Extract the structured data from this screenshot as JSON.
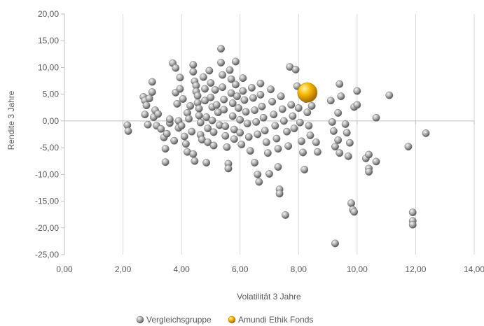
{
  "chart_data": {
    "type": "scatter",
    "xlabel": "Volatilität 3 Jahre",
    "ylabel": "Rendite 3 Jahre",
    "xlim": [
      0,
      14
    ],
    "ylim": [
      -25,
      20
    ],
    "xticks": [
      0,
      2,
      4,
      6,
      8,
      10,
      12,
      14
    ],
    "yticks": [
      -25,
      -20,
      -15,
      -10,
      -5,
      0,
      5,
      10,
      15,
      20
    ],
    "xtick_labels": [
      "0,00",
      "2,00",
      "4,00",
      "6,00",
      "8,00",
      "10,00",
      "12,00",
      "14,00"
    ],
    "ytick_labels": [
      "-25,00",
      "-20,00",
      "-15,00",
      "-10,00",
      "-5,00",
      "0,00",
      "5,00",
      "10,00",
      "15,00",
      "20,00"
    ],
    "grid": "vertical",
    "legend_position": "bottom",
    "colors": {
      "series_1": "#a6a6a6",
      "series_2": "#f5b800",
      "grid": "#d9d9d9",
      "text": "#595959"
    },
    "series": [
      {
        "name": "Vergleichsgruppe",
        "points": [
          [
            2.15,
            -0.8
          ],
          [
            2.18,
            -1.9
          ],
          [
            2.7,
            4.5
          ],
          [
            2.75,
            3.8
          ],
          [
            2.8,
            2.9
          ],
          [
            2.75,
            1.2
          ],
          [
            2.85,
            -0.7
          ],
          [
            2.9,
            4.2
          ],
          [
            3.0,
            7.3
          ],
          [
            3.0,
            5.4
          ],
          [
            3.1,
            2.0
          ],
          [
            3.05,
            0.7
          ],
          [
            3.15,
            -0.9
          ],
          [
            3.2,
            1.3
          ],
          [
            3.3,
            -1.5
          ],
          [
            3.4,
            -3.1
          ],
          [
            3.45,
            -5.2
          ],
          [
            3.45,
            -7.7
          ],
          [
            3.5,
            -2.4
          ],
          [
            3.6,
            -0.4
          ],
          [
            3.6,
            0.3
          ],
          [
            3.7,
            10.8
          ],
          [
            3.75,
            -3.7
          ],
          [
            3.8,
            9.9
          ],
          [
            3.8,
            5.3
          ],
          [
            3.85,
            3.2
          ],
          [
            3.9,
            0.0
          ],
          [
            3.9,
            -1.3
          ],
          [
            3.95,
            8.1
          ],
          [
            3.95,
            6.0
          ],
          [
            4.0,
            -0.9
          ],
          [
            4.05,
            4.1
          ],
          [
            4.1,
            -2.9
          ],
          [
            4.15,
            -4.3
          ],
          [
            4.2,
            -5.8
          ],
          [
            4.2,
            1.5
          ],
          [
            4.25,
            0.4
          ],
          [
            4.3,
            2.8
          ],
          [
            4.35,
            -2.0
          ],
          [
            4.4,
            10.5
          ],
          [
            4.4,
            9.2
          ],
          [
            4.4,
            -6.2
          ],
          [
            4.45,
            -7.5
          ],
          [
            4.45,
            7.4
          ],
          [
            4.5,
            6.6
          ],
          [
            4.5,
            5.5
          ],
          [
            4.55,
            4.7
          ],
          [
            4.55,
            3.4
          ],
          [
            4.6,
            2.3
          ],
          [
            4.6,
            1.0
          ],
          [
            4.65,
            -0.3
          ],
          [
            4.65,
            -2.6
          ],
          [
            4.7,
            -3.5
          ],
          [
            4.75,
            8.2
          ],
          [
            4.8,
            6.0
          ],
          [
            4.8,
            3.8
          ],
          [
            4.85,
            -7.8
          ],
          [
            4.85,
            0.7
          ],
          [
            4.9,
            -1.4
          ],
          [
            4.9,
            -4.0
          ],
          [
            4.95,
            9.4
          ],
          [
            5.0,
            7.1
          ],
          [
            5.0,
            4.4
          ],
          [
            5.05,
            2.6
          ],
          [
            5.05,
            0.1
          ],
          [
            5.1,
            -2.1
          ],
          [
            5.1,
            -4.6
          ],
          [
            5.15,
            5.8
          ],
          [
            5.2,
            3.0
          ],
          [
            5.25,
            1.6
          ],
          [
            5.3,
            -0.8
          ],
          [
            5.35,
            13.5
          ],
          [
            5.35,
            10.9
          ],
          [
            5.4,
            8.6
          ],
          [
            5.4,
            6.3
          ],
          [
            5.45,
            4.0
          ],
          [
            5.45,
            2.1
          ],
          [
            5.5,
            -1.0
          ],
          [
            5.5,
            -2.8
          ],
          [
            5.55,
            -4.9
          ],
          [
            5.6,
            -8.0
          ],
          [
            5.6,
            -8.9
          ],
          [
            5.65,
            9.5
          ],
          [
            5.7,
            7.8
          ],
          [
            5.7,
            5.2
          ],
          [
            5.75,
            3.3
          ],
          [
            5.75,
            0.9
          ],
          [
            5.8,
            -1.6
          ],
          [
            5.8,
            -3.4
          ],
          [
            5.85,
            11.1
          ],
          [
            5.85,
            6.8
          ],
          [
            5.9,
            4.6
          ],
          [
            5.95,
            2.4
          ],
          [
            6.0,
            0.2
          ],
          [
            6.0,
            -2.2
          ],
          [
            6.05,
            -4.4
          ],
          [
            6.1,
            8.0
          ],
          [
            6.1,
            5.6
          ],
          [
            6.15,
            3.9
          ],
          [
            6.2,
            1.7
          ],
          [
            6.25,
            -0.5
          ],
          [
            6.3,
            -3.0
          ],
          [
            6.35,
            -5.6
          ],
          [
            6.4,
            6.2
          ],
          [
            6.45,
            4.3
          ],
          [
            6.5,
            2.0
          ],
          [
            6.5,
            -7.8
          ],
          [
            6.55,
            -0.2
          ],
          [
            6.6,
            -2.5
          ],
          [
            6.6,
            -10.0
          ],
          [
            6.65,
            -11.4
          ],
          [
            6.7,
            7.0
          ],
          [
            6.7,
            4.9
          ],
          [
            6.75,
            2.7
          ],
          [
            6.8,
            0.6
          ],
          [
            6.85,
            -1.8
          ],
          [
            6.9,
            -4.0
          ],
          [
            6.95,
            -6.0
          ],
          [
            7.0,
            -9.9
          ],
          [
            7.05,
            5.9
          ],
          [
            7.1,
            3.6
          ],
          [
            7.15,
            1.2
          ],
          [
            7.2,
            -0.9
          ],
          [
            7.25,
            -3.3
          ],
          [
            7.3,
            -5.2
          ],
          [
            7.3,
            -8.6
          ],
          [
            7.35,
            -12.8
          ],
          [
            7.35,
            -13.6
          ],
          [
            7.4,
            4.6
          ],
          [
            7.45,
            2.2
          ],
          [
            7.5,
            0.0
          ],
          [
            7.55,
            -17.6
          ],
          [
            7.6,
            -2.0
          ],
          [
            7.65,
            -4.7
          ],
          [
            7.7,
            10.1
          ],
          [
            7.75,
            3.0
          ],
          [
            7.8,
            0.9
          ],
          [
            7.85,
            -1.4
          ],
          [
            7.9,
            9.6
          ],
          [
            7.95,
            6.5
          ],
          [
            8.0,
            2.4
          ],
          [
            8.05,
            -0.3
          ],
          [
            8.1,
            -3.8
          ],
          [
            8.15,
            -5.9
          ],
          [
            8.2,
            -9.1
          ],
          [
            8.25,
            4.1
          ],
          [
            8.3,
            1.6
          ],
          [
            8.35,
            -0.9
          ],
          [
            8.4,
            -2.7
          ],
          [
            8.45,
            2.8
          ],
          [
            8.6,
            -4.0
          ],
          [
            8.65,
            -5.8
          ],
          [
            9.1,
            3.8
          ],
          [
            9.15,
            -0.2
          ],
          [
            9.2,
            -1.9
          ],
          [
            9.25,
            -4.8
          ],
          [
            9.25,
            -22.9
          ],
          [
            9.35,
            1.5
          ],
          [
            9.35,
            -3.6
          ],
          [
            9.4,
            -6.0
          ],
          [
            9.4,
            6.9
          ],
          [
            9.45,
            4.6
          ],
          [
            9.6,
            -0.6
          ],
          [
            9.65,
            -2.2
          ],
          [
            9.7,
            -6.6
          ],
          [
            9.75,
            -4.1
          ],
          [
            9.8,
            -15.4
          ],
          [
            9.85,
            -16.6
          ],
          [
            9.9,
            -17.0
          ],
          [
            9.9,
            2.6
          ],
          [
            10.0,
            5.6
          ],
          [
            10.0,
            3.0
          ],
          [
            10.3,
            -7.0
          ],
          [
            10.4,
            -6.3
          ],
          [
            10.4,
            -8.9
          ],
          [
            10.4,
            -9.5
          ],
          [
            10.65,
            -7.6
          ],
          [
            10.65,
            0.6
          ],
          [
            11.1,
            4.8
          ],
          [
            11.75,
            -4.8
          ],
          [
            11.9,
            -17.1
          ],
          [
            11.9,
            -18.7
          ],
          [
            11.9,
            -19.4
          ],
          [
            12.35,
            -2.3
          ]
        ]
      },
      {
        "name": "Amundi Ethik Fonds",
        "points": [
          [
            8.3,
            5.3
          ]
        ]
      }
    ]
  }
}
